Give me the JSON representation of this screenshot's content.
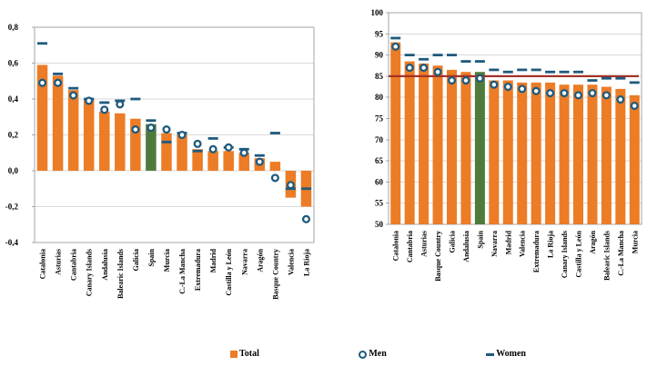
{
  "legend": {
    "items": [
      {
        "label": "Total",
        "marker": "orange-square"
      },
      {
        "label": "Men",
        "marker": "blue-ring"
      },
      {
        "label": "Women",
        "marker": "blue-dash"
      }
    ]
  },
  "colors": {
    "bar": "#EC7C25",
    "highlight_bar": "#4E7B3C",
    "marker": "#1F5A7D",
    "reference_line": "#A33229",
    "gridline": "#D9D9D9",
    "frame": "#A6A6A6"
  },
  "chart_data": [
    {
      "type": "bar",
      "title": "",
      "xlabel": "",
      "ylabel": "",
      "ylim": [
        -0.4,
        0.8
      ],
      "baseline": 0,
      "grid": true,
      "highlight_category": "Spain",
      "ytick_values": [
        0.8,
        0.6,
        0.4,
        0.2,
        0.0,
        -0.2,
        -0.4
      ],
      "ytick_labels": [
        "0,8",
        "0,6",
        "0,4",
        "0,2",
        "0,0",
        "-0,2",
        "-0,4"
      ],
      "categories": [
        "Catalonia",
        "Asturias",
        "Cantabria",
        "Canary Islands",
        "Andalusia",
        "Balearic Islands",
        "Galicia",
        "Spain",
        "Murcia",
        "C.-La Mancha",
        "Extremadura",
        "Madrid",
        "Castilla y León",
        "Navarra",
        "Aragón",
        "Basque Country",
        "Valencia",
        "La Rioja"
      ],
      "series": [
        {
          "name": "Total",
          "style": "bar",
          "values": [
            0.59,
            0.53,
            0.45,
            0.4,
            0.33,
            0.32,
            0.29,
            0.26,
            0.21,
            0.2,
            0.12,
            0.11,
            0.11,
            0.1,
            0.07,
            0.05,
            -0.15,
            -0.2
          ]
        },
        {
          "name": "Men",
          "style": "circle",
          "values": [
            0.49,
            0.49,
            0.42,
            0.39,
            0.34,
            0.37,
            0.23,
            0.24,
            0.23,
            0.2,
            0.15,
            0.12,
            0.13,
            0.1,
            0.05,
            -0.04,
            -0.08,
            -0.27
          ]
        },
        {
          "name": "Women",
          "style": "dash",
          "values": [
            0.71,
            0.54,
            0.46,
            0.4,
            0.38,
            0.39,
            0.4,
            0.28,
            0.16,
            0.21,
            0.11,
            0.18,
            0.13,
            0.12,
            0.085,
            0.21,
            -0.1,
            -0.1
          ]
        }
      ]
    },
    {
      "type": "bar",
      "title": "",
      "xlabel": "",
      "ylabel": "",
      "ylim": [
        50,
        100
      ],
      "baseline": 50,
      "grid": true,
      "highlight_category": "Spain",
      "reference_line": 85,
      "ytick_values": [
        100,
        95,
        90,
        85,
        80,
        75,
        70,
        65,
        60,
        55,
        50
      ],
      "ytick_labels": [
        "100",
        "95",
        "90",
        "85",
        "80",
        "75",
        "70",
        "65",
        "60",
        "55",
        "50"
      ],
      "categories": [
        "Catalonia",
        "Cantabria",
        "Asturias",
        "Basque Country",
        "Galicia",
        "Andalusia",
        "Spain",
        "Navarra",
        "Madrid",
        "Valencia",
        "Extremadura",
        "La Rioja",
        "Canary Islands",
        "Castilla y León",
        "Aragón",
        "Balearic Islands",
        "C.-La Mancha",
        "Murcia"
      ],
      "series": [
        {
          "name": "Total",
          "style": "bar",
          "values": [
            93,
            88.5,
            88,
            87.5,
            86.5,
            86,
            86,
            84,
            84,
            83.5,
            83.5,
            83.5,
            83,
            83,
            83,
            82.5,
            82,
            80.5
          ]
        },
        {
          "name": "Men",
          "style": "circle",
          "values": [
            92,
            87,
            87,
            86,
            84,
            84,
            84.5,
            83,
            82.5,
            82,
            81.5,
            81,
            81,
            80.5,
            81,
            80.5,
            79.5,
            78
          ]
        },
        {
          "name": "Women",
          "style": "dash",
          "values": [
            94,
            90,
            89,
            90,
            90,
            88.5,
            88.5,
            86.5,
            86,
            86.5,
            86.5,
            86,
            86,
            86,
            84,
            84.5,
            84.5,
            83.5
          ]
        }
      ]
    }
  ]
}
